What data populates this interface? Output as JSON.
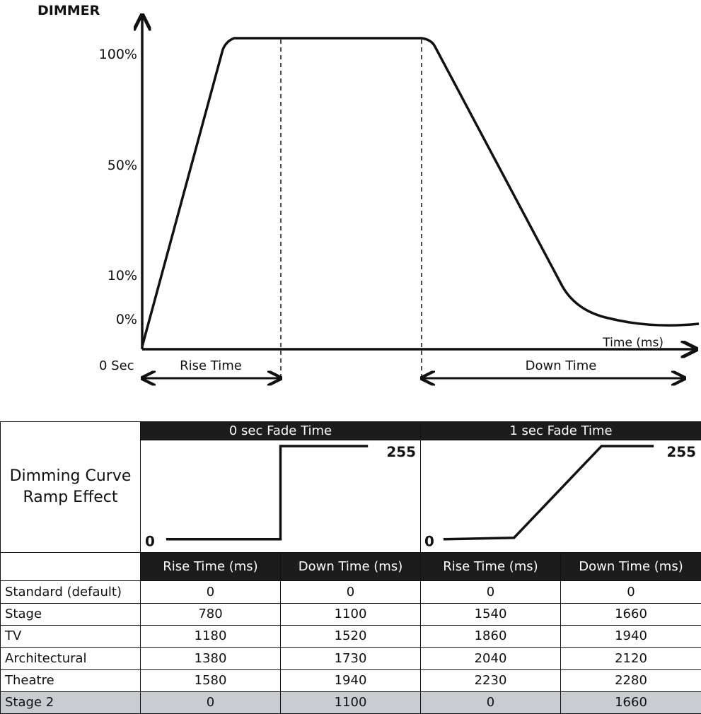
{
  "diagram": {
    "y_axis_title": "DIMMER",
    "y_ticks": [
      "100%",
      "50%",
      "10%",
      "0%"
    ],
    "x_axis_title": "Time (ms)",
    "origin_label": "0 Sec",
    "rise_label": "Rise Time",
    "down_label": "Down Time"
  },
  "table": {
    "title_line1": "Dimming Curve",
    "title_line2": "Ramp Effect",
    "groups": [
      {
        "label": "0 sec Fade Time",
        "low": "0",
        "high": "255"
      },
      {
        "label": "1 sec Fade Time",
        "low": "0",
        "high": "255"
      }
    ],
    "columns": [
      "Rise Time (ms)",
      "Down Time (ms)",
      "Rise Time (ms)",
      "Down Time (ms)"
    ],
    "rows": [
      {
        "name": "Standard (default)",
        "values": [
          "0",
          "0",
          "0",
          "0"
        ]
      },
      {
        "name": "Stage",
        "values": [
          "780",
          "1100",
          "1540",
          "1660"
        ]
      },
      {
        "name": "TV",
        "values": [
          "1180",
          "1520",
          "1860",
          "1940"
        ]
      },
      {
        "name": "Architectural",
        "values": [
          "1380",
          "1730",
          "2040",
          "2120"
        ]
      },
      {
        "name": "Theatre",
        "values": [
          "1580",
          "1940",
          "2230",
          "2280"
        ]
      },
      {
        "name": "Stage 2",
        "values": [
          "0",
          "1100",
          "0",
          "1660"
        ]
      }
    ],
    "highlight_color": "#c9ccd0",
    "header_color": "#1c1c1c"
  }
}
